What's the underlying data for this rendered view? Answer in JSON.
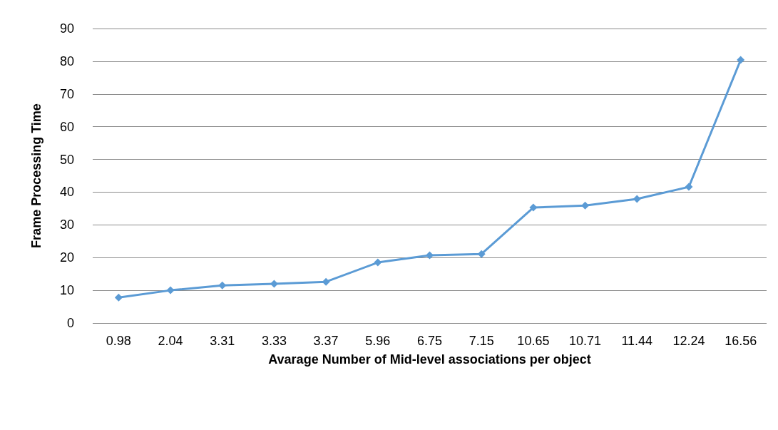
{
  "chart_data": {
    "type": "line",
    "xlabel": "Avarage Number of Mid-level associations per object",
    "ylabel": "Frame Processing Time",
    "categories": [
      "0.98",
      "2.04",
      "3.31",
      "3.33",
      "3.37",
      "5.96",
      "6.75",
      "7.15",
      "10.65",
      "10.71",
      "11.44",
      "12.24",
      "16.56"
    ],
    "series": [
      {
        "color": "#5b9bd5",
        "values": [
          7.8,
          10.0,
          11.5,
          12.0,
          12.6,
          18.5,
          20.7,
          21.1,
          35.3,
          35.9,
          37.9,
          41.6,
          80.4
        ]
      }
    ],
    "ylim": [
      0,
      90
    ],
    "yticks": [
      0,
      10,
      20,
      30,
      40,
      50,
      60,
      70,
      80,
      90
    ],
    "grid": "y",
    "marker": "diamond",
    "line_style": "solid"
  }
}
